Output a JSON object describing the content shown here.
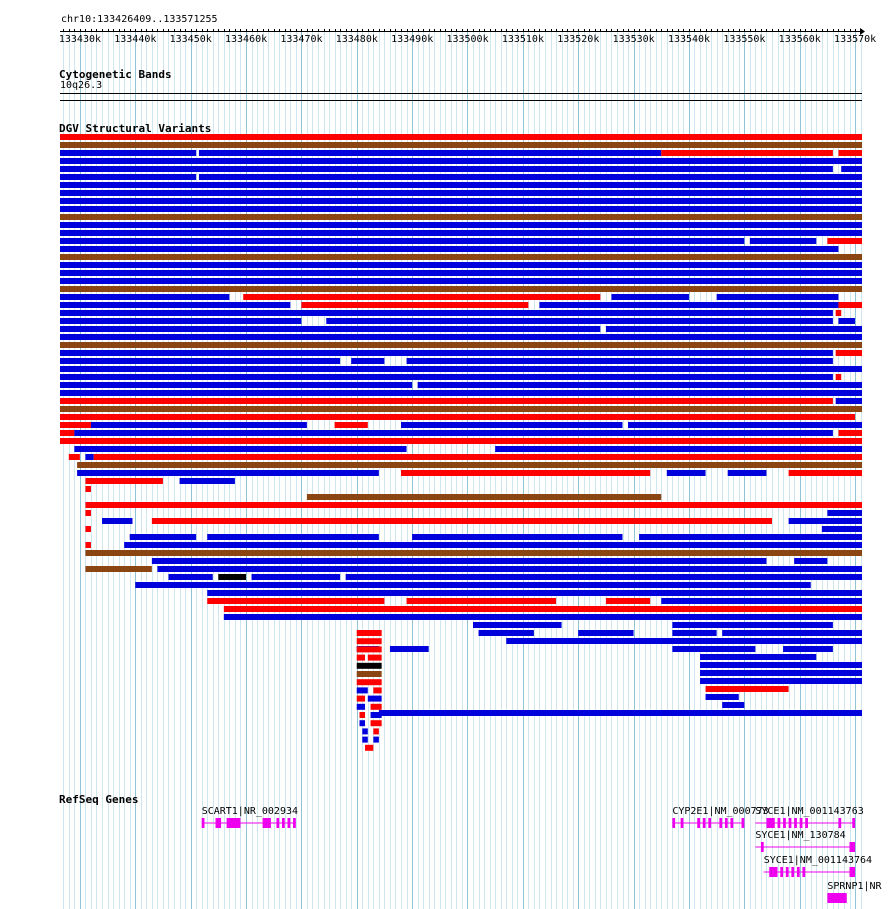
{
  "browser": {
    "location": "chr10:133426409..133571255",
    "ruler": {
      "start": 133426409,
      "end": 133571255,
      "tick_labels": [
        "133430k",
        "133440k",
        "133450k",
        "133460k",
        "133470k",
        "133480k",
        "133490k",
        "133500k",
        "133510k",
        "133520k",
        "133530k",
        "133540k",
        "133550k",
        "133560k",
        "133570k"
      ]
    }
  },
  "tracks": {
    "cytoband": {
      "title": "Cytogenetic Bands",
      "band": "10q26.3"
    },
    "dgv": {
      "title": "DGV Structural Variants",
      "colors": {
        "gain": "#0000dd",
        "loss": "#ff0000",
        "gain_loss": "#8b4513",
        "inversion": "#000000"
      },
      "rows": [
        [
          [
            "r",
            133426409,
            133571255
          ]
        ],
        [
          [
            "o",
            133426409,
            133571255
          ]
        ],
        [
          [
            "b",
            133426409,
            133451000
          ],
          [
            "b",
            133451500,
            133535000
          ],
          [
            "r",
            133535000,
            133566000
          ],
          [
            "r",
            133567000,
            133571255
          ]
        ],
        [
          [
            "b",
            133426409,
            133571255
          ]
        ],
        [
          [
            "b",
            133426409,
            133566000
          ],
          [
            "b",
            133567500,
            133571255
          ]
        ],
        [
          [
            "b",
            133426409,
            133451000
          ],
          [
            "b",
            133451500,
            133571255
          ]
        ],
        [
          [
            "b",
            133426409,
            133571255
          ]
        ],
        [
          [
            "b",
            133426409,
            133571255
          ]
        ],
        [
          [
            "b",
            133426409,
            133571255
          ]
        ],
        [
          [
            "b",
            133426409,
            133571255
          ]
        ],
        [
          [
            "o",
            133426409,
            133571255
          ]
        ],
        [
          [
            "b",
            133426409,
            133571255
          ]
        ],
        [
          [
            "b",
            133426409,
            133571255
          ]
        ],
        [
          [
            "b",
            133426409,
            133550000
          ],
          [
            "b",
            133551000,
            133563000
          ],
          [
            "r",
            133565000,
            133571255
          ]
        ],
        [
          [
            "b",
            133426409,
            133567000
          ]
        ],
        [
          [
            "o",
            133426409,
            133571255
          ]
        ],
        [
          [
            "b",
            133426409,
            133571255
          ]
        ],
        [
          [
            "b",
            133426409,
            133571255
          ]
        ],
        [
          [
            "b",
            133426409,
            133571255
          ]
        ],
        [
          [
            "o",
            133426409,
            133571255
          ]
        ],
        [
          [
            "b",
            133426409,
            133457000
          ],
          [
            "r",
            133459500,
            133524000
          ],
          [
            "b",
            133526000,
            133540000
          ],
          [
            "b",
            133545000,
            133567000
          ]
        ],
        [
          [
            "b",
            133426409,
            133468000
          ],
          [
            "r",
            133470000,
            133511000
          ],
          [
            "b",
            133513000,
            133567000
          ],
          [
            "r",
            133567000,
            133571255
          ]
        ],
        [
          [
            "b",
            133426409,
            133566000
          ],
          [
            "r",
            133566500,
            133567500
          ]
        ],
        [
          [
            "b",
            133426409,
            133470000
          ],
          [
            "b",
            133474500,
            133566000
          ],
          [
            "b",
            133567000,
            133570000
          ]
        ],
        [
          [
            "b",
            133426409,
            133524000
          ],
          [
            "b",
            133525000,
            133571255
          ]
        ],
        [
          [
            "b",
            133426409,
            133571255
          ]
        ],
        [
          [
            "o",
            133426409,
            133571255
          ]
        ],
        [
          [
            "b",
            133426409,
            133566000
          ],
          [
            "r",
            133566500,
            133571255
          ]
        ],
        [
          [
            "b",
            133426409,
            133477000
          ],
          [
            "b",
            133479000,
            133485000
          ],
          [
            "b",
            133489000,
            133566000
          ]
        ],
        [
          [
            "b",
            133426409,
            133571255
          ]
        ],
        [
          [
            "b",
            133426409,
            133566000
          ],
          [
            "r",
            133566500,
            133567500
          ]
        ],
        [
          [
            "b",
            133426409,
            133490000
          ],
          [
            "b",
            133491000,
            133571255
          ]
        ],
        [
          [
            "b",
            133426409,
            133571255
          ]
        ],
        [
          [
            "r",
            133426409,
            133566000
          ],
          [
            "b",
            133566500,
            133571255
          ]
        ],
        [
          [
            "o",
            133426409,
            133571255
          ]
        ],
        [
          [
            "r",
            133426409,
            133570000
          ]
        ],
        [
          [
            "r",
            133426409,
            133432000
          ],
          [
            "b",
            133432000,
            133471000
          ],
          [
            "r",
            133476000,
            133482000
          ],
          [
            "b",
            133488000,
            133528000
          ],
          [
            "b",
            133529000,
            133571255
          ]
        ],
        [
          [
            "r",
            133426409,
            133429000
          ],
          [
            "b",
            133429000,
            133566000
          ],
          [
            "r",
            133567000,
            133571255
          ]
        ],
        [
          [
            "r",
            133426409,
            133571255
          ]
        ],
        [
          [
            "b",
            133429000,
            133489000
          ],
          [
            "b",
            133505000,
            133571255
          ]
        ],
        [
          [
            "r",
            133428000,
            133430000
          ],
          [
            "b",
            133431000,
            133432500
          ],
          [
            "r",
            133432500,
            133571255
          ]
        ],
        [
          [
            "o",
            133429500,
            133571255
          ]
        ],
        [
          [
            "b",
            133429500,
            133484000
          ],
          [
            "r",
            133488000,
            133533000
          ],
          [
            "b",
            133536000,
            133543000
          ],
          [
            "b",
            133547000,
            133554000
          ],
          [
            "r",
            133558000,
            133571255
          ]
        ],
        [
          [
            "r",
            133431000,
            133445000
          ],
          [
            "b",
            133448000,
            133458000
          ]
        ],
        [
          [
            "r",
            133431000,
            133432000
          ]
        ],
        [
          [
            "o",
            133471000,
            133535000
          ]
        ],
        [
          [
            "r",
            133431000,
            133571255
          ]
        ],
        [
          [
            "r",
            133431000,
            133432000
          ],
          [
            "b",
            133565000,
            133571255
          ]
        ],
        [
          [
            "b",
            133434000,
            133439500
          ],
          [
            "r",
            133443000,
            133555000
          ],
          [
            "b",
            133558000,
            133571255
          ]
        ],
        [
          [
            "r",
            133431000,
            133432000
          ],
          [
            "b",
            133564000,
            133571255
          ]
        ],
        [
          [
            "b",
            133439000,
            133451000
          ],
          [
            "b",
            133453000,
            133484000
          ],
          [
            "b",
            133490000,
            133528000
          ],
          [
            "b",
            133531000,
            133571255
          ]
        ],
        [
          [
            "r",
            133431000,
            133432000
          ],
          [
            "b",
            133438000,
            133571255
          ]
        ],
        [
          [
            "o",
            133431000,
            133571255
          ]
        ],
        [
          [
            "b",
            133443000,
            133554000
          ],
          [
            "b",
            133559000,
            133565000
          ]
        ],
        [
          [
            "o",
            133431000,
            133443000
          ],
          [
            "b",
            133444000,
            133571255
          ]
        ],
        [
          [
            "b",
            133446000,
            133454000
          ],
          [
            "k",
            133455000,
            133460000
          ],
          [
            "b",
            133461000,
            133477000
          ],
          [
            "b",
            133478000,
            133571255
          ]
        ],
        [
          [
            "b",
            133440000,
            133562000
          ]
        ],
        [
          [
            "b",
            133453000,
            133571255
          ]
        ],
        [
          [
            "r",
            133453000,
            133485000
          ],
          [
            "r",
            133489000,
            133516000
          ],
          [
            "r",
            133525000,
            133533000
          ],
          [
            "b",
            133535000,
            133571255
          ]
        ],
        [
          [
            "r",
            133456000,
            133571255
          ]
        ],
        [
          [
            "b",
            133456000,
            133571255
          ]
        ],
        [
          [
            "b",
            133501000,
            133517000
          ],
          [
            "b",
            133537000,
            133566000
          ]
        ],
        [
          [
            "b",
            133502000,
            133512000
          ],
          [
            "b",
            133520000,
            133530000
          ],
          [
            "b",
            133537000,
            133545000
          ],
          [
            "b",
            133546000,
            133571255
          ]
        ],
        [
          [
            "b",
            133507000,
            133571255
          ]
        ],
        [
          [
            "b",
            133480000,
            133484000
          ],
          [
            "b",
            133486000,
            133493000
          ],
          [
            "b",
            133537000,
            133552000
          ],
          [
            "b",
            133557000,
            133566000
          ]
        ],
        [
          [
            "b",
            133542000,
            133563000
          ]
        ],
        [
          [
            "b",
            133542000,
            133571255
          ]
        ],
        [
          [
            "b",
            133542000,
            133571255
          ]
        ],
        [
          [
            "b",
            133542000,
            133571255
          ]
        ],
        [
          [
            "r",
            133543000,
            133558000
          ]
        ],
        [
          [
            "b",
            133543000,
            133549000
          ]
        ],
        [
          [
            "b",
            133546000,
            133550000
          ]
        ],
        [
          [
            "b",
            133484000,
            133571255
          ]
        ]
      ],
      "stack": [
        [
          [
            "r",
            133480000,
            133484500
          ]
        ],
        [
          [
            "r",
            133480000,
            133484500
          ]
        ],
        [
          [
            "r",
            133480000,
            133484500
          ]
        ],
        [
          [
            "r",
            133480000,
            133481500
          ],
          [
            "r",
            133482000,
            133484500
          ]
        ],
        [
          [
            "k",
            133480000,
            133484500
          ]
        ],
        [
          [
            "o",
            133480000,
            133484500
          ]
        ],
        [
          [
            "r",
            133480000,
            133484500
          ]
        ],
        [
          [
            "b",
            133480000,
            133482000
          ],
          [
            "r",
            133483000,
            133484500
          ]
        ],
        [
          [
            "r",
            133480000,
            133481500
          ],
          [
            "b",
            133482000,
            133484500
          ]
        ],
        [
          [
            "b",
            133480000,
            133481500
          ],
          [
            "r",
            133482500,
            133484500
          ]
        ],
        [
          [
            "r",
            133480500,
            133481500
          ],
          [
            "b",
            133482500,
            133484500
          ]
        ],
        [
          [
            "b",
            133480500,
            133481500
          ],
          [
            "r",
            133482500,
            133484500
          ]
        ],
        [
          [
            "b",
            133481000,
            133482000
          ],
          [
            "r",
            133483000,
            133484000
          ]
        ],
        [
          [
            "b",
            133481000,
            133482000
          ],
          [
            "b",
            133483000,
            133484000
          ]
        ],
        [
          [
            "r",
            133481500,
            133483000
          ]
        ]
      ]
    },
    "refseq": {
      "title": "RefSeq Genes",
      "color": "#ee00ee",
      "genes": [
        {
          "label": "SCART1|NR_002934",
          "start": 133452000,
          "end": 133469000,
          "exons": [
            [
              133452000,
              133452500
            ],
            [
              133454500,
              133455500
            ],
            [
              133456500,
              133459000
            ],
            [
              133463000,
              133464500
            ],
            [
              133465500,
              133466000
            ],
            [
              133466500,
              133467000
            ],
            [
              133467500,
              133468000
            ],
            [
              133468500,
              133469000
            ]
          ]
        },
        {
          "label": "CYP2E1|NM_000773",
          "start": 133537000,
          "end": 133550000,
          "exons": [
            [
              133537000,
              133537500
            ],
            [
              133538500,
              133539000
            ],
            [
              133541500,
              133542000
            ],
            [
              133542500,
              133543000
            ],
            [
              133543500,
              133544000
            ],
            [
              133545500,
              133546000
            ],
            [
              133546500,
              133547000
            ],
            [
              133547500,
              133548000
            ],
            [
              133549500,
              133550000
            ]
          ]
        },
        {
          "label": "SYCE1|NM_001143763",
          "start": 133552000,
          "end": 133570000,
          "exons": [
            [
              133554000,
              133555500
            ],
            [
              133556000,
              133556500
            ],
            [
              133557000,
              133557500
            ],
            [
              133558000,
              133558500
            ],
            [
              133559000,
              133559500
            ],
            [
              133560000,
              133560500
            ],
            [
              133561000,
              133561500
            ],
            [
              133567000,
              133567500
            ],
            [
              133569500,
              133570000
            ]
          ]
        },
        {
          "label": "SYCE1|NM_130784",
          "start": 133552000,
          "end": 133570000,
          "exons": [
            [
              133553000,
              133553500
            ],
            [
              133569000,
              133570000
            ]
          ]
        },
        {
          "label": "SYCE1|NM_001143764",
          "start": 133553500,
          "end": 133570000,
          "exons": [
            [
              133554500,
              133556000
            ],
            [
              133556500,
              133557000
            ],
            [
              133557500,
              133558000
            ],
            [
              133558500,
              133559000
            ],
            [
              133559500,
              133560000
            ],
            [
              133560500,
              133561000
            ],
            [
              133569000,
              133570000
            ]
          ]
        },
        {
          "label": "SPRNP1|NR",
          "start": 133565000,
          "end": 133568500,
          "exons": [
            [
              133565000,
              133568500
            ]
          ]
        }
      ]
    }
  }
}
